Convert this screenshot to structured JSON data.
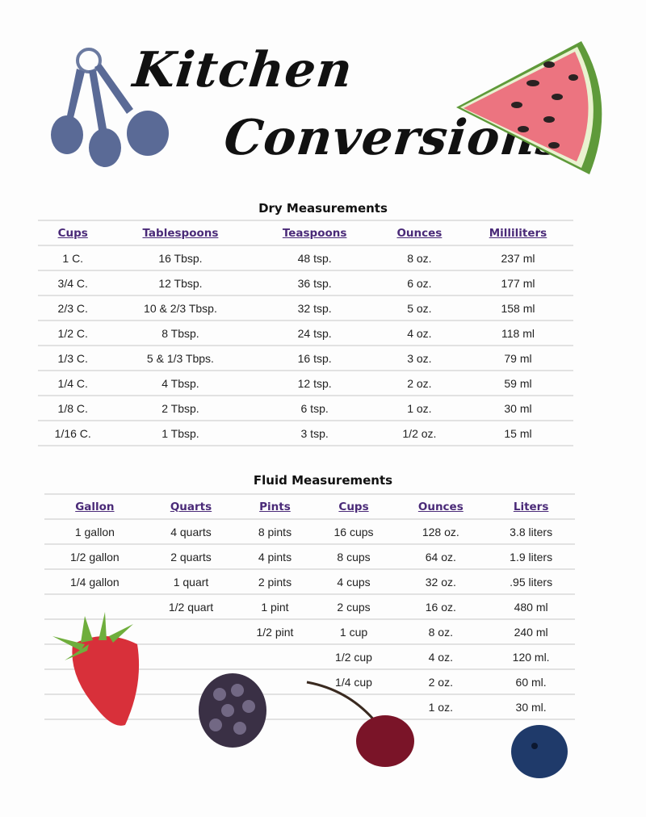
{
  "title": {
    "line1": "Kitchen",
    "line2": "Conversions"
  },
  "dry": {
    "title": "Dry Measurements",
    "headers": [
      "Cups",
      "Tablespoons",
      "Teaspoons",
      "Ounces",
      "Milliliters"
    ],
    "rows": [
      [
        "1 C.",
        "16 Tbsp.",
        "48 tsp.",
        "8 oz.",
        "237 ml"
      ],
      [
        "3/4 C.",
        "12 Tbsp.",
        "36 tsp.",
        "6 oz.",
        "177 ml"
      ],
      [
        "2/3 C.",
        "10 & 2/3 Tbsp.",
        "32 tsp.",
        "5 oz.",
        "158 ml"
      ],
      [
        "1/2 C.",
        "8 Tbsp.",
        "24 tsp.",
        "4 oz.",
        "118 ml"
      ],
      [
        "1/3 C.",
        "5 & 1/3 Tbps.",
        "16 tsp.",
        "3 oz.",
        "79 ml"
      ],
      [
        "1/4 C.",
        "4 Tbsp.",
        "12 tsp.",
        "2 oz.",
        "59 ml"
      ],
      [
        "1/8 C.",
        "2 Tbsp.",
        "6 tsp.",
        "1 oz.",
        "30 ml"
      ],
      [
        "1/16 C.",
        "1 Tbsp.",
        "3 tsp.",
        "1/2 oz.",
        "15 ml"
      ]
    ]
  },
  "fluid": {
    "title": "Fluid Measurements",
    "headers": [
      "Gallon",
      "Quarts",
      "Pints",
      "Cups",
      "Ounces",
      "Liters"
    ],
    "rows": [
      [
        "1 gallon",
        "4 quarts",
        "8 pints",
        "16 cups",
        "128 oz.",
        "3.8 liters"
      ],
      [
        "1/2 gallon",
        "2 quarts",
        "4 pints",
        "8 cups",
        "64 oz.",
        "1.9 liters"
      ],
      [
        "1/4 gallon",
        "1 quart",
        "2 pints",
        "4 cups",
        "32 oz.",
        ".95 liters"
      ],
      [
        "",
        "1/2 quart",
        "1 pint",
        "2 cups",
        "16 oz.",
        "480 ml"
      ],
      [
        "",
        "",
        "1/2 pint",
        "1 cup",
        "8 oz.",
        "240 ml"
      ],
      [
        "",
        "",
        "",
        "1/2 cup",
        "4 oz.",
        "120 ml."
      ],
      [
        "",
        "",
        "",
        "1/4 cup",
        "2 oz.",
        "60 ml."
      ],
      [
        "",
        "",
        "",
        "",
        "1 oz.",
        "30 ml."
      ]
    ]
  },
  "colors": {
    "header": "#4a2a78",
    "spoons": "#5a6a96",
    "watermelon": "#e86a78"
  },
  "icons": [
    "measuring-spoons-icon",
    "watermelon-icon",
    "strawberry-icon",
    "blackberry-icon",
    "cherry-icon",
    "blueberry-icon"
  ]
}
